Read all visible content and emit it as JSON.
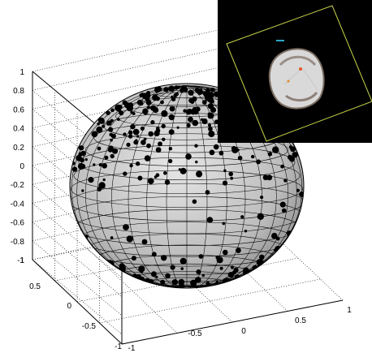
{
  "chart_data": [
    {
      "type": "scatter",
      "subtype": "3d-surface-sphere",
      "title": "",
      "xlabel": "",
      "ylabel": "",
      "zlabel": "",
      "grid": true,
      "surface": {
        "shape": "sphere",
        "radius": 1,
        "face_color": "#c8c8c8",
        "edge_color": "#000000"
      },
      "zlim": [
        -1,
        0.8
      ],
      "xlim": [
        -1,
        1
      ],
      "ylim": [
        -1,
        1
      ],
      "z_ticks": [
        "1",
        "0.8",
        "0.6",
        "0.4",
        "0.2",
        "0",
        "-0.2",
        "-0.4",
        "-0.6",
        "-0.8",
        "-1"
      ],
      "x_ticks": [
        "1",
        "0.5",
        "0",
        "-0.5",
        "-1"
      ],
      "y_ticks": [
        "-1",
        "-0.5",
        "0",
        "0.5",
        "1"
      ],
      "marker_color": "#000000",
      "points_note": "black marker dots scattered over the visible hemisphere, denser near the top"
    },
    {
      "type": "other",
      "subtype": "inset-rendering",
      "background": "#000000",
      "frame_color": "#c8d44a"
    }
  ]
}
